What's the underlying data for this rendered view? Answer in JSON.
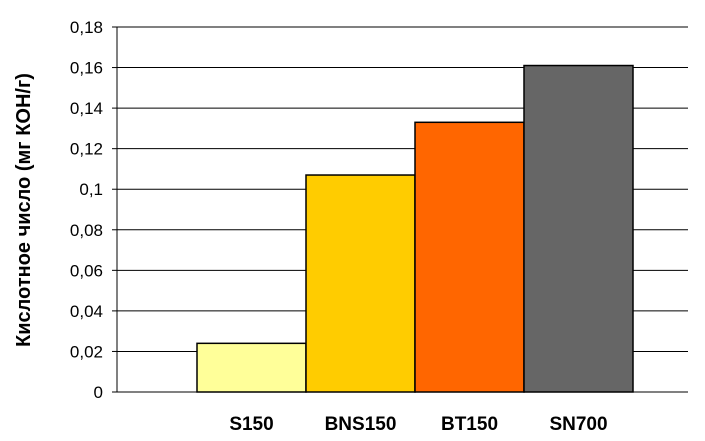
{
  "chart_data": {
    "type": "bar",
    "title": "",
    "xlabel": "",
    "ylabel": "Кислотное число (мг КОН/г)",
    "categories": [
      "S150",
      "BNS150",
      "BT150",
      "SN700"
    ],
    "values": [
      0.024,
      0.107,
      0.133,
      0.161
    ],
    "colors": [
      "#FFFF99",
      "#FFCC00",
      "#FF6600",
      "#666666"
    ],
    "ylim": [
      0,
      0.18
    ],
    "yticks": [
      "0",
      "0,02",
      "0,04",
      "0,06",
      "0,08",
      "0,1",
      "0,12",
      "0,14",
      "0,16",
      "0,18"
    ],
    "grid": true,
    "legend": "none"
  }
}
